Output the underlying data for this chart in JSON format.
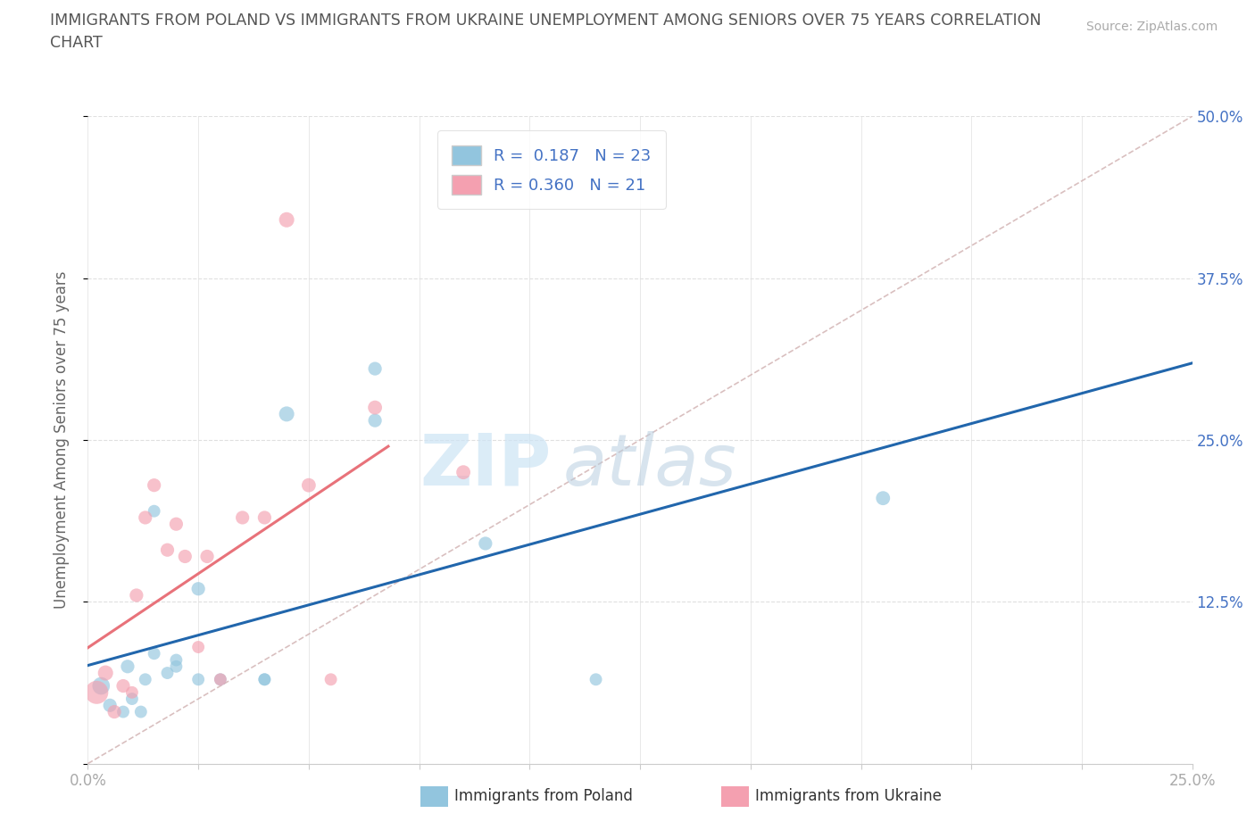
{
  "title_line1": "IMMIGRANTS FROM POLAND VS IMMIGRANTS FROM UKRAINE UNEMPLOYMENT AMONG SENIORS OVER 75 YEARS CORRELATION",
  "title_line2": "CHART",
  "source": "Source: ZipAtlas.com",
  "ylabel": "Unemployment Among Seniors over 75 years",
  "legend_label_blue": "Immigrants from Poland",
  "legend_label_pink": "Immigrants from Ukraine",
  "R_blue": "0.187",
  "N_blue": "23",
  "R_pink": "0.360",
  "N_pink": "21",
  "xlim": [
    0,
    0.25
  ],
  "ylim": [
    0,
    0.5
  ],
  "xticks": [
    0,
    0.025,
    0.05,
    0.075,
    0.1,
    0.125,
    0.15,
    0.175,
    0.2,
    0.225,
    0.25
  ],
  "yticks": [
    0,
    0.125,
    0.25,
    0.375,
    0.5
  ],
  "xtick_labels_show": {
    "0": "0.0%",
    "0.25": "25.0%"
  },
  "ytick_labels": [
    "",
    "12.5%",
    "25.0%",
    "37.5%",
    "50.0%"
  ],
  "color_blue": "#92c5de",
  "color_pink": "#f4a0b0",
  "color_blue_line": "#2166ac",
  "color_pink_line": "#e8727a",
  "color_diag": "#d0b0b0",
  "watermark_zip": "ZIP",
  "watermark_atlas": "atlas",
  "blue_x": [
    0.003,
    0.005,
    0.008,
    0.009,
    0.01,
    0.012,
    0.013,
    0.015,
    0.015,
    0.018,
    0.02,
    0.02,
    0.025,
    0.025,
    0.03,
    0.04,
    0.04,
    0.045,
    0.065,
    0.065,
    0.09,
    0.115,
    0.18
  ],
  "blue_y": [
    0.06,
    0.045,
    0.04,
    0.075,
    0.05,
    0.04,
    0.065,
    0.085,
    0.195,
    0.07,
    0.075,
    0.08,
    0.135,
    0.065,
    0.065,
    0.065,
    0.065,
    0.27,
    0.305,
    0.265,
    0.17,
    0.065,
    0.205
  ],
  "blue_sizes": [
    200,
    120,
    100,
    120,
    100,
    100,
    100,
    100,
    100,
    100,
    100,
    100,
    120,
    100,
    100,
    100,
    100,
    150,
    120,
    120,
    120,
    100,
    130
  ],
  "pink_x": [
    0.002,
    0.004,
    0.006,
    0.008,
    0.01,
    0.011,
    0.013,
    0.015,
    0.018,
    0.02,
    0.022,
    0.025,
    0.027,
    0.03,
    0.035,
    0.04,
    0.045,
    0.05,
    0.055,
    0.065,
    0.085
  ],
  "pink_y": [
    0.055,
    0.07,
    0.04,
    0.06,
    0.055,
    0.13,
    0.19,
    0.215,
    0.165,
    0.185,
    0.16,
    0.09,
    0.16,
    0.065,
    0.19,
    0.19,
    0.42,
    0.215,
    0.065,
    0.275,
    0.225
  ],
  "pink_sizes": [
    350,
    150,
    120,
    120,
    100,
    120,
    120,
    120,
    120,
    120,
    120,
    100,
    120,
    100,
    120,
    120,
    150,
    130,
    100,
    130,
    130
  ],
  "background_color": "#ffffff",
  "grid_color": "#e0e0e0",
  "title_color": "#555555",
  "axis_label_color": "#666666",
  "tick_label_color": "#aaaaaa",
  "source_color": "#aaaaaa",
  "right_tick_color": "#4472c4"
}
